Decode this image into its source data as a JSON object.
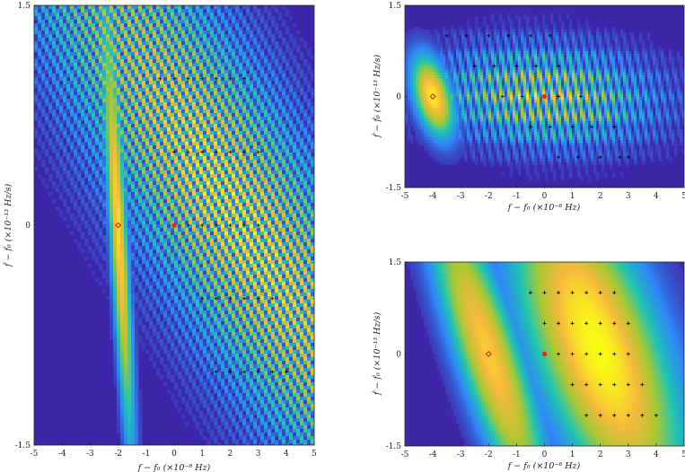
{
  "chart_data": [
    {
      "type": "heatmap",
      "panel": "left",
      "xlabel": "f − f₀ (×10⁻⁸ Hz)",
      "ylabel": "ḟ − ḟ₀ (×10⁻¹³ Hz/s)",
      "xlim": [
        -5,
        5
      ],
      "ylim": [
        -1.5,
        1.5
      ],
      "xticks": [
        "-5",
        "-4",
        "-3",
        "-2",
        "-1",
        "0",
        "1",
        "2",
        "3",
        "4",
        "5"
      ],
      "yticks": [
        "-1.5",
        "0",
        "1.5"
      ],
      "colormap": [
        "#3e26a8",
        "#2e87f7",
        "#20c5b0",
        "#a8c834",
        "#f6ba3c",
        "#f9fb15"
      ],
      "blobs": [
        {
          "x": -2.0,
          "y": 0.0,
          "sx": 0.2,
          "sy": 1.0,
          "slope": -0.3,
          "amp": 0.9,
          "fx": 0,
          "fy": 0
        },
        {
          "x": 2.1,
          "y": 0.1,
          "sx": 2.5,
          "sy": 1.6,
          "slope": -2.9,
          "amp": 1.0,
          "fx": 2.9,
          "fy": 0
        }
      ],
      "marker_original": {
        "x": -2.0,
        "y": 0.0
      },
      "marker_true": {
        "x": 0.0,
        "y": 0.0
      },
      "grid_points": {
        "rows": [
          {
            "y": 1.0,
            "x": [
              -0.5,
              0.0,
              0.5,
              1.0,
              1.5,
              2.0,
              2.5
            ]
          },
          {
            "y": 0.5,
            "x": [
              0.0,
              0.5,
              1.0,
              1.5,
              2.0,
              2.5,
              3.0
            ]
          },
          {
            "y": 0.0,
            "x": [
              0.5,
              1.0,
              1.5,
              2.0,
              2.5,
              3.0
            ]
          },
          {
            "y": -0.5,
            "x": [
              1.0,
              1.5,
              2.0,
              2.5,
              3.0,
              3.5
            ]
          },
          {
            "y": -1.0,
            "x": [
              1.5,
              2.0,
              2.5,
              3.0,
              3.5,
              4.0
            ]
          }
        ]
      }
    },
    {
      "type": "heatmap",
      "panel": "top-right",
      "xlabel": "f − f₀ (×10⁻⁸ Hz)",
      "ylabel": "ḟ − ḟ₀ (×10⁻¹³ Hz/s)",
      "xlim": [
        -5,
        5
      ],
      "ylim": [
        -1.5,
        1.5
      ],
      "xticks": [
        "-5",
        "-4",
        "-3",
        "-2",
        "-1",
        "0",
        "1",
        "2",
        "3",
        "4",
        "5"
      ],
      "yticks": [
        "-1.5",
        "0",
        "1.5"
      ],
      "blobs": [
        {
          "x": -4.0,
          "y": 0.0,
          "sx": 0.45,
          "sy": 0.45,
          "slope": -0.5,
          "amp": 0.95,
          "fx": 0,
          "fy": 0
        },
        {
          "x": 0.0,
          "y": 0.0,
          "sx": 2.6,
          "sy": 0.55,
          "slope": -0.5,
          "amp": 1.0,
          "fx": 3.3,
          "fy": 3.0
        }
      ],
      "marker_original": {
        "x": -4.0,
        "y": 0.0
      },
      "marker_true": {
        "x": 0.0,
        "y": 0.0
      },
      "grid_points": {
        "rows": [
          {
            "y": 1.0,
            "x": [
              -3.5,
              -2.8,
              -2.0,
              -1.3,
              -0.5,
              0.2
            ]
          },
          {
            "y": 0.5,
            "x": [
              -2.5,
              -1.8,
              -1.0,
              -0.3,
              0.5
            ]
          },
          {
            "y": 0.0,
            "x": [
              -1.5,
              -0.8,
              0.0,
              0.5,
              1.3
            ]
          },
          {
            "y": -0.5,
            "x": [
              -0.5,
              0.2,
              1.0,
              1.7,
              2.5
            ]
          },
          {
            "y": -1.0,
            "x": [
              0.5,
              1.2,
              2.0,
              2.7,
              3.0
            ]
          }
        ]
      }
    },
    {
      "type": "heatmap",
      "panel": "bottom-right",
      "xlabel": "f − f₀ (×10⁻⁸ Hz)",
      "ylabel": "ḟ − ḟ₀ (×10⁻¹³ Hz/s)",
      "xlim": [
        -5,
        5
      ],
      "ylim": [
        -1.5,
        1.5
      ],
      "xticks": [
        "-5",
        "-4",
        "-3",
        "-2",
        "-1",
        "0",
        "1",
        "2",
        "3",
        "4",
        "5"
      ],
      "yticks": [
        "-1.5",
        "0",
        "1.5"
      ],
      "blobs": [
        {
          "x": -2.0,
          "y": 0.0,
          "sx": 0.8,
          "sy": 1.8,
          "slope": -0.7,
          "amp": 0.85,
          "fx": 0,
          "fy": 0
        },
        {
          "x": 1.9,
          "y": 0.1,
          "sx": 1.6,
          "sy": 1.9,
          "slope": -0.7,
          "amp": 1.0,
          "fx": 0,
          "fy": 0
        }
      ],
      "marker_original": {
        "x": -2.0,
        "y": 0.0
      },
      "marker_true": {
        "x": 0.0,
        "y": 0.0
      },
      "grid_points": {
        "rows": [
          {
            "y": 1.0,
            "x": [
              -0.5,
              0.0,
              0.5,
              1.0,
              1.5,
              2.0,
              2.5
            ]
          },
          {
            "y": 0.5,
            "x": [
              0.0,
              0.5,
              1.0,
              1.5,
              2.0,
              2.5,
              3.0
            ]
          },
          {
            "y": 0.0,
            "x": [
              0.5,
              1.0,
              1.5,
              2.0,
              2.5,
              3.0
            ]
          },
          {
            "y": -0.5,
            "x": [
              1.0,
              1.5,
              2.0,
              2.5,
              3.0,
              3.5
            ]
          },
          {
            "y": -1.0,
            "x": [
              1.5,
              2.0,
              2.5,
              3.0,
              3.5,
              4.0
            ]
          }
        ]
      }
    }
  ]
}
